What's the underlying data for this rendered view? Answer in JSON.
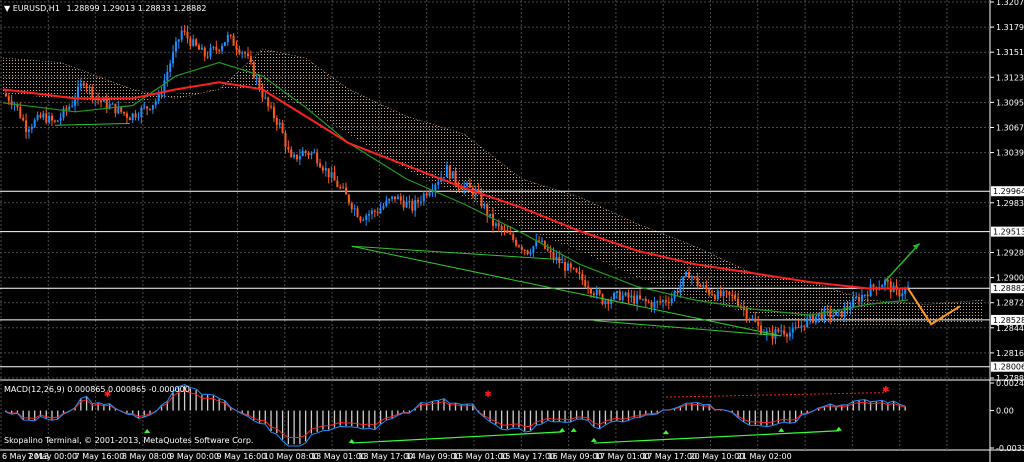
{
  "header": {
    "symbol": "EURUSD,H1",
    "ohlc": "1.28899 1.29013 1.28833 1.28882"
  },
  "indicator_label": "MACD(12,26,9) 0.000865 0.000865 -0.000000",
  "copyright": "Skopalino Terminal, © 2001-2013, MetaQuotes Software Corp.",
  "colors": {
    "background": "#000000",
    "grid": "#4a4a4a",
    "bull": "#1e90ff",
    "bear": "#ff5a1e",
    "ma_red": "#ff2020",
    "ma_green": "#1f9a1f",
    "cloud": "#f0c8a8",
    "trendline": "#2ec82e",
    "forecast_orange": "#ff9a1e",
    "forecast_green": "#28b428",
    "level_line": "#ffffff",
    "macd_hist": "#cfcfcf",
    "macd_signal": "#ff2020",
    "macd_main": "#1e90ff",
    "macd_arrow_up": "#37ff37",
    "macd_arrow_down": "#ff2020"
  },
  "chart_data": {
    "type": "candlestick",
    "x_axis": [
      "6 May 2013",
      "7 May 00:00",
      "7 May 16:00",
      "8 May 08:00",
      "9 May 00:00",
      "9 May 16:00",
      "10 May 08:00",
      "13 May 01:00",
      "13 May 17:00",
      "14 May 09:00",
      "15 May 01:00",
      "15 May 17:00",
      "16 May 09:00",
      "17 May 01:00",
      "17 May 17:00",
      "20 May 10:00",
      "21 May 02:00"
    ],
    "y_axis_ticks": [
      "1.32075",
      "1.31795",
      "1.31515",
      "1.31235",
      "1.30955",
      "1.30675",
      "1.30395",
      "1.29835",
      "1.29280",
      "1.29000",
      "1.28720",
      "1.28440",
      "1.28160",
      "1.27880"
    ],
    "ylim": [
      1.2788,
      1.32075
    ],
    "price_labels": [
      {
        "value": 1.29964,
        "text": "1.29964",
        "boxed": true
      },
      {
        "value": 1.29513,
        "text": "1.29513",
        "boxed": true
      },
      {
        "value": 1.28882,
        "text": "1.28882",
        "boxed": true
      },
      {
        "value": 1.28528,
        "text": "1.28528",
        "boxed": true
      },
      {
        "value": 1.28006,
        "text": "1.28006",
        "boxed": true
      }
    ],
    "horizontal_levels": [
      1.29964,
      1.29513,
      1.28882,
      1.28528,
      1.28006
    ],
    "close_path": [
      [
        0,
        1.3105
      ],
      [
        4,
        1.3095
      ],
      [
        8,
        1.3068
      ],
      [
        14,
        1.308
      ],
      [
        18,
        1.3072
      ],
      [
        24,
        1.3095
      ],
      [
        28,
        1.312
      ],
      [
        32,
        1.31
      ],
      [
        38,
        1.309
      ],
      [
        44,
        1.308
      ],
      [
        50,
        1.309
      ],
      [
        54,
        1.31
      ],
      [
        58,
        1.314
      ],
      [
        62,
        1.3175
      ],
      [
        66,
        1.316
      ],
      [
        70,
        1.3148
      ],
      [
        74,
        1.3155
      ],
      [
        78,
        1.3168
      ],
      [
        84,
        1.315
      ],
      [
        88,
        1.312
      ],
      [
        92,
        1.309
      ],
      [
        96,
        1.307
      ],
      [
        100,
        1.303
      ],
      [
        104,
        1.304
      ],
      [
        108,
        1.3038
      ],
      [
        112,
        1.302
      ],
      [
        118,
        1.2995
      ],
      [
        124,
        1.2968
      ],
      [
        130,
        1.2975
      ],
      [
        136,
        1.299
      ],
      [
        142,
        1.2978
      ],
      [
        148,
        1.3
      ],
      [
        154,
        1.302
      ],
      [
        158,
        1.3005
      ],
      [
        164,
        1.2995
      ],
      [
        170,
        1.296
      ],
      [
        176,
        1.2945
      ],
      [
        182,
        1.293
      ],
      [
        186,
        1.294
      ],
      [
        190,
        1.2925
      ],
      [
        196,
        1.291
      ],
      [
        202,
        1.2895
      ],
      [
        208,
        1.2875
      ],
      [
        214,
        1.288
      ],
      [
        220,
        1.2875
      ],
      [
        226,
        1.287
      ],
      [
        232,
        1.2878
      ],
      [
        238,
        1.2905
      ],
      [
        242,
        1.289
      ],
      [
        248,
        1.288
      ],
      [
        254,
        1.2878
      ],
      [
        258,
        1.286
      ],
      [
        262,
        1.2845
      ],
      [
        266,
        1.2835
      ],
      [
        270,
        1.2842
      ],
      [
        274,
        1.2838
      ],
      [
        278,
        1.285
      ],
      [
        284,
        1.286
      ],
      [
        290,
        1.2858
      ],
      [
        296,
        1.2875
      ],
      [
        302,
        1.289
      ],
      [
        306,
        1.2895
      ],
      [
        310,
        1.2882
      ],
      [
        314,
        1.2888
      ]
    ],
    "ma_red": [
      [
        0,
        1.311
      ],
      [
        25,
        1.31
      ],
      [
        45,
        1.31
      ],
      [
        60,
        1.311
      ],
      [
        75,
        1.3118
      ],
      [
        90,
        1.311
      ],
      [
        105,
        1.308
      ],
      [
        120,
        1.305
      ],
      [
        140,
        1.3025
      ],
      [
        160,
        1.3
      ],
      [
        180,
        1.2978
      ],
      [
        200,
        1.2952
      ],
      [
        220,
        1.293
      ],
      [
        240,
        1.2915
      ],
      [
        260,
        1.2905
      ],
      [
        280,
        1.2895
      ],
      [
        300,
        1.2888
      ],
      [
        314,
        1.2888
      ]
    ],
    "ma_green": [
      [
        0,
        1.3095
      ],
      [
        25,
        1.3085
      ],
      [
        45,
        1.3092
      ],
      [
        60,
        1.3125
      ],
      [
        75,
        1.314
      ],
      [
        90,
        1.3125
      ],
      [
        105,
        1.309
      ],
      [
        120,
        1.305
      ],
      [
        140,
        1.301
      ],
      [
        160,
        1.2982
      ],
      [
        180,
        1.295
      ],
      [
        200,
        1.2915
      ],
      [
        220,
        1.289
      ],
      [
        240,
        1.2875
      ],
      [
        260,
        1.2865
      ],
      [
        280,
        1.2858
      ],
      [
        300,
        1.287
      ],
      [
        314,
        1.2875
      ]
    ],
    "cloud_top": [
      [
        0,
        1.3145
      ],
      [
        20,
        1.314
      ],
      [
        45,
        1.311
      ],
      [
        60,
        1.31
      ],
      [
        75,
        1.311
      ],
      [
        90,
        1.3155
      ],
      [
        105,
        1.3145
      ],
      [
        120,
        1.311
      ],
      [
        140,
        1.308
      ],
      [
        160,
        1.306
      ],
      [
        180,
        1.301
      ],
      [
        200,
        1.299
      ],
      [
        220,
        1.296
      ],
      [
        240,
        1.2935
      ],
      [
        260,
        1.2905
      ],
      [
        280,
        1.2895
      ],
      [
        300,
        1.2875
      ],
      [
        320,
        1.287
      ],
      [
        340,
        1.2875
      ]
    ],
    "cloud_bottom": [
      [
        0,
        1.3105
      ],
      [
        20,
        1.31
      ],
      [
        45,
        1.3095
      ],
      [
        60,
        1.3105
      ],
      [
        75,
        1.311
      ],
      [
        90,
        1.311
      ],
      [
        105,
        1.309
      ],
      [
        120,
        1.306
      ],
      [
        140,
        1.302
      ],
      [
        160,
        1.299
      ],
      [
        180,
        1.2955
      ],
      [
        200,
        1.293
      ],
      [
        220,
        1.29
      ],
      [
        240,
        1.2875
      ],
      [
        260,
        1.286
      ],
      [
        280,
        1.285
      ],
      [
        300,
        1.2845
      ],
      [
        320,
        1.2848
      ],
      [
        340,
        1.285
      ]
    ],
    "trendlines": [
      {
        "from": [
          121,
          1.2935
        ],
        "to": [
          194,
          1.292
        ]
      },
      {
        "from": [
          121,
          1.2935
        ],
        "to": [
          270,
          1.2835
        ]
      },
      {
        "from": [
          205,
          1.2852
        ],
        "to": [
          270,
          1.2835
        ]
      },
      {
        "from": [
          18,
          1.307
        ],
        "to": [
          44,
          1.3072
        ]
      }
    ],
    "forecast": {
      "orange": [
        [
          314,
          1.2888
        ],
        [
          322,
          1.2848
        ],
        [
          332,
          1.2868
        ]
      ],
      "green": [
        [
          306,
          1.2896
        ],
        [
          318,
          1.2938
        ]
      ]
    },
    "macd": {
      "label": "MACD(12,26,9) 0.000865 0.000865 -0.000000",
      "ticks": [
        "0.002459",
        "0.00",
        "-0.003342"
      ],
      "ylim": [
        -0.003342,
        0.002459
      ]
    }
  }
}
